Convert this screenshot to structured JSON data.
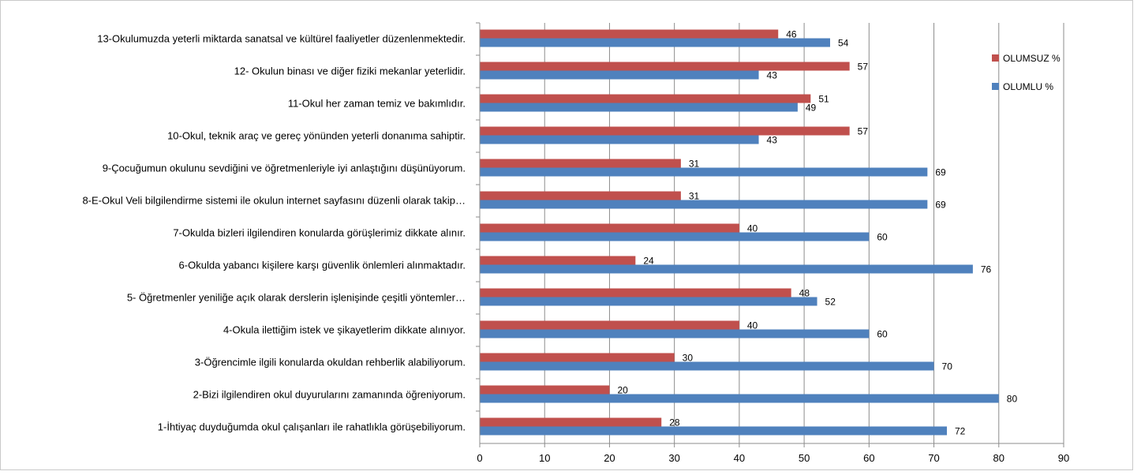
{
  "chart_data": {
    "type": "bar",
    "orientation": "horizontal",
    "categories": [
      "1-İhtiyaç duyduğumda okul çalışanları ile rahatlıkla görüşebiliyorum.",
      "2-Bizi ilgilendiren okul duyurularını zamanında öğreniyorum.",
      "3-Öğrencimle ilgili konularda okuldan rehberlik alabiliyorum.",
      "4-Okula ilettiğim istek ve şikayetlerim dikkate alınıyor.",
      "5- Öğretmenler yeniliğe açık olarak derslerin işlenişinde çeşitli yöntemler…",
      "6-Okulda yabancı kişilere karşı güvenlik önlemleri alınmaktadır.",
      "7-Okulda bizleri ilgilendiren konularda görüşlerimiz dikkate alınır.",
      "8-E-Okul Veli bilgilendirme sistemi ile okulun internet sayfasını düzenli olarak takip…",
      "9-Çocuğumun okulunu sevdiğini ve öğretmenleriyle iyi anlaştığını düşünüyorum.",
      "10-Okul, teknik araç ve gereç yönünden yeterli donanıma sahiptir.",
      "11-Okul her zaman temiz ve bakımlıdır.",
      "12- Okulun binası ve diğer fiziki mekanlar yeterlidir.",
      "13-Okulumuzda yeterli miktarda sanatsal ve kültürel faaliyetler düzenlenmektedir."
    ],
    "series": [
      {
        "name": "OLUMSUZ %",
        "color": "#c0504d",
        "values": [
          28,
          20,
          30,
          40,
          48,
          24,
          40,
          31,
          31,
          57,
          51,
          57,
          46
        ]
      },
      {
        "name": "OLUMLU %",
        "color": "#4f81bd",
        "values": [
          72,
          80,
          70,
          60,
          52,
          76,
          60,
          69,
          69,
          43,
          49,
          43,
          54
        ]
      }
    ],
    "xlim": [
      0,
      90
    ],
    "xticks": [
      0,
      10,
      20,
      30,
      40,
      50,
      60,
      70,
      80,
      90
    ],
    "grid": true,
    "legend_position": "right",
    "title": "",
    "xlabel": "",
    "ylabel": ""
  }
}
